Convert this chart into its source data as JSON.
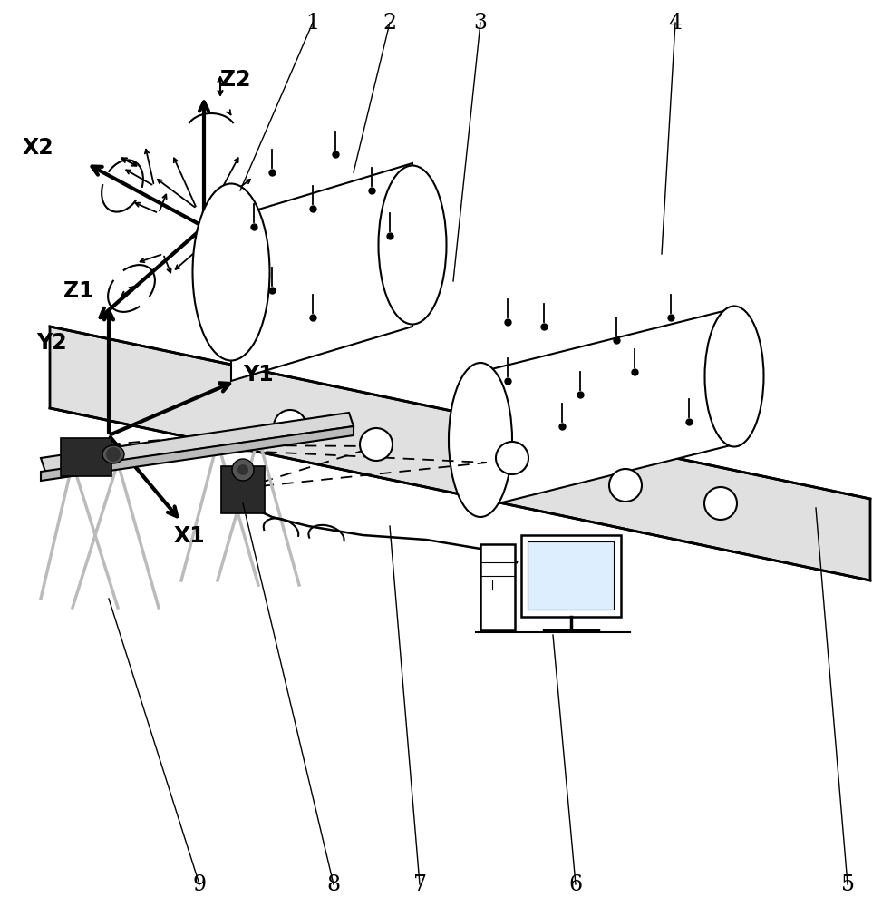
{
  "bg": "#ffffff",
  "black": "#000000",
  "gray_light": "#d8d8d8",
  "gray_mid": "#bbbbbb",
  "gray_dark": "#555555",
  "camera_color": "#2a2a2a",
  "rail_fill": "#e0e0e0",
  "screen_color": "#ddeeff",
  "labels": [
    "1",
    "2",
    "3",
    "4",
    "5",
    "6",
    "7",
    "8",
    "9"
  ],
  "figw": 9.73,
  "figh": 10.0,
  "dpi": 100
}
